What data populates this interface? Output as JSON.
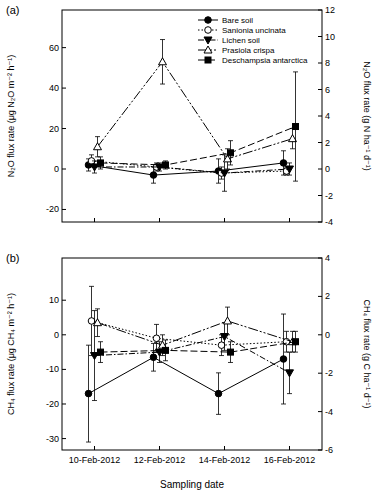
{
  "chart_data": [
    {
      "type": "line",
      "title": "(a)",
      "categories": [
        "10-Feb-2012",
        "12-Feb-2012",
        "14-Feb-2012",
        "16-Feb-2012"
      ],
      "y_label": "N₂O flux rate (μg N₂O m⁻² h⁻¹)",
      "y2_label": "N₂O flux rate (g N ha⁻¹ d⁻¹)",
      "ylim": [
        -26.2,
        78.6
      ],
      "yticks": [
        -20,
        0,
        20,
        40,
        60
      ],
      "y2lim": [
        -4,
        12
      ],
      "y2ticks": [
        -4,
        -2,
        0,
        2,
        4,
        6,
        8,
        10,
        12
      ],
      "legend": "top-right",
      "tick_labels": "y",
      "grid": false,
      "series": [
        {
          "name": "Bare soil",
          "color": "#000000",
          "marker": "circle",
          "line_style": "solid",
          "values": [
            2,
            -3,
            -1,
            3
          ],
          "errors": [
            3,
            4,
            6,
            6
          ]
        },
        {
          "name": "Sanionia uncinata",
          "color": "#000000",
          "marker": "circle-open",
          "line_style": "dotted",
          "values": [
            4,
            1,
            -2,
            -1
          ],
          "errors": [
            3,
            2,
            3,
            2
          ]
        },
        {
          "name": "Lichen soil",
          "color": "#000000",
          "marker": "triangle-down",
          "line_style": "dashdot",
          "values": [
            1,
            1,
            -2,
            0
          ],
          "errors": [
            3,
            2,
            9,
            3
          ]
        },
        {
          "name": "Prasiola crispa",
          "color": "#000000",
          "marker": "triangle-up-open",
          "line_style": "longdashdot",
          "values": [
            11,
            53,
            5,
            15
          ],
          "errors": [
            5,
            11,
            5,
            5
          ]
        },
        {
          "name": "Deschampsia antarctica",
          "color": "#000000",
          "marker": "square",
          "line_style": "dashed",
          "values": [
            3,
            2,
            8,
            21
          ],
          "errors": [
            3,
            2,
            6,
            27
          ]
        }
      ]
    },
    {
      "type": "line",
      "title": "(b)",
      "categories": [
        "10-Feb-2012",
        "12-Feb-2012",
        "14-Feb-2012",
        "16-Feb-2012"
      ],
      "x_label": "Sampling date",
      "y_label": "CH₄ flux rate (μg CH₄ m⁻² h⁻¹)",
      "y2_label": "CH₄ flux rate (g C ha⁻¹ d⁻¹)",
      "ylim": [
        -33.3,
        22.2
      ],
      "yticks": [
        -30,
        -20,
        -10,
        0,
        10
      ],
      "y2lim": [
        -6,
        4
      ],
      "y2ticks": [
        -6,
        -4,
        -2,
        0,
        2,
        4
      ],
      "grid": false,
      "series": [
        {
          "color": "#000000",
          "marker": "circle",
          "line_style": "solid",
          "values": [
            -17,
            -6.5,
            -17,
            -7
          ],
          "errors": [
            14,
            4,
            6,
            13
          ]
        },
        {
          "color": "#000000",
          "marker": "circle-open",
          "line_style": "dotted",
          "values": [
            4,
            -1,
            -3,
            -2
          ],
          "errors": [
            10,
            4,
            3,
            3
          ]
        },
        {
          "color": "#000000",
          "marker": "triangle-down",
          "line_style": "dashdot",
          "values": [
            -6,
            -5,
            -0.5,
            -11
          ],
          "errors": [
            13,
            3,
            4,
            6
          ]
        },
        {
          "color": "#000000",
          "marker": "triangle-up-open",
          "line_style": "longdashdot",
          "values": [
            3.5,
            -3,
            4,
            -2
          ],
          "errors": [
            4,
            3,
            4,
            3
          ]
        },
        {
          "color": "#000000",
          "marker": "square",
          "line_style": "dashed",
          "values": [
            -5,
            -4.5,
            -5,
            -2
          ],
          "errors": [
            3,
            3,
            3,
            3
          ]
        }
      ]
    }
  ]
}
